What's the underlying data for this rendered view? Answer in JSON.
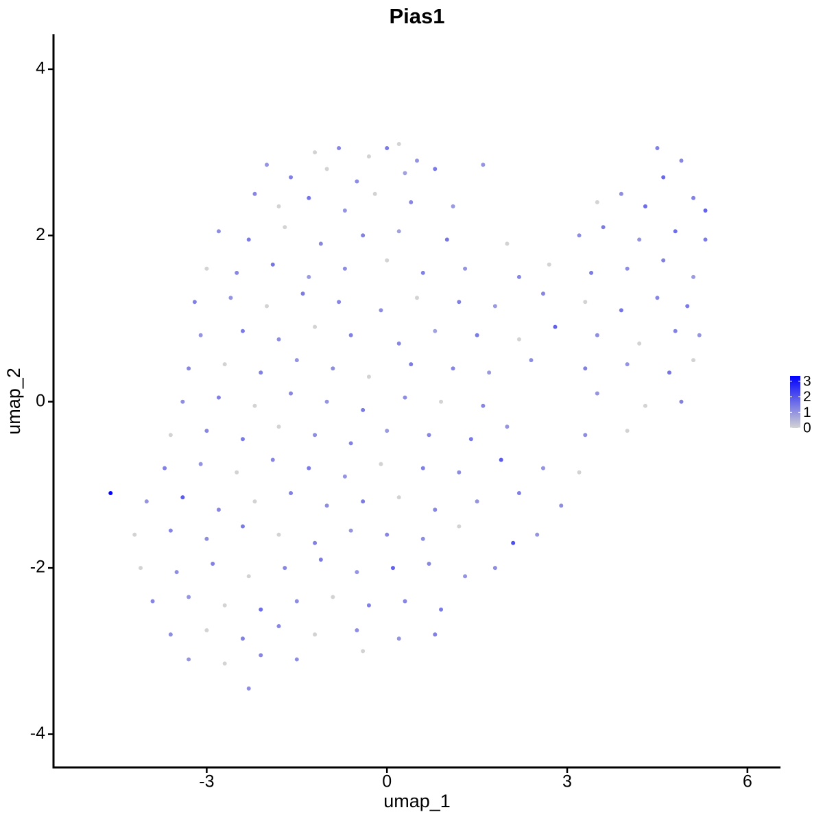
{
  "chart_data": {
    "type": "scatter",
    "title": "Pias1",
    "x_label": "umap_1",
    "y_label": "umap_2",
    "xlim": [
      -5.55,
      6.55
    ],
    "ylim": [
      -4.4,
      4.42
    ],
    "xticks": [
      -3,
      0,
      3,
      6
    ],
    "yticks": [
      -4,
      -2,
      0,
      2,
      4
    ],
    "grid": false,
    "point_size": 3,
    "series": [
      {
        "x": [
          -1.2,
          -0.8,
          -0.3,
          0,
          0.2,
          0.5,
          4.5,
          -2.0,
          -1.6,
          -1.0,
          -0.5,
          0.3,
          0.8,
          1.6,
          4.6,
          4.9,
          -2.2,
          -1.8,
          -1.3,
          -0.7,
          -0.2,
          0.4,
          1.1,
          3.5,
          3.9,
          4.3,
          5.1,
          5.3,
          -2.8,
          -2.3,
          -1.7,
          -1.1,
          -0.4,
          0.2,
          1.0,
          2.0,
          3.2,
          3.6,
          4.2,
          4.8,
          5.3,
          -3.0,
          -2.5,
          -1.9,
          -1.3,
          -0.7,
          0,
          0.6,
          1.3,
          2.2,
          2.7,
          3.4,
          4.0,
          4.6,
          5.1,
          -3.2,
          -2.6,
          -2.0,
          -1.4,
          -0.8,
          -0.1,
          0.5,
          1.2,
          1.8,
          2.6,
          3.3,
          3.9,
          4.5,
          5.0,
          -3.1,
          -2.4,
          -1.8,
          -1.2,
          -0.6,
          0.2,
          0.8,
          1.5,
          2.2,
          2.8,
          3.5,
          4.2,
          4.8,
          5.2,
          -3.3,
          -2.7,
          -2.1,
          -1.5,
          -0.9,
          -0.3,
          0.4,
          1.1,
          1.7,
          2.4,
          3.3,
          4.0,
          4.7,
          5.1,
          -3.4,
          -2.8,
          -2.2,
          -1.6,
          -1.0,
          -0.4,
          0.3,
          0.9,
          1.6,
          3.5,
          4.3,
          4.9,
          -3.6,
          -3.0,
          -2.4,
          -1.8,
          -1.2,
          -0.6,
          0,
          0.7,
          1.4,
          2.0,
          3.3,
          4.0,
          -3.7,
          -3.1,
          -2.5,
          -1.9,
          -1.3,
          -0.7,
          -0.1,
          0.6,
          1.2,
          1.9,
          2.6,
          3.2,
          -4.6,
          -4.0,
          -3.4,
          -2.8,
          -2.2,
          -1.6,
          -1.0,
          -0.4,
          0.2,
          0.8,
          1.5,
          2.2,
          2.9,
          -4.2,
          -3.6,
          -3.0,
          -2.4,
          -1.8,
          -1.2,
          -0.6,
          0,
          0.6,
          1.2,
          2.1,
          2.5,
          -4.1,
          -3.5,
          -2.9,
          -2.3,
          -1.7,
          -1.1,
          -0.5,
          0.1,
          0.7,
          1.3,
          1.8,
          -3.9,
          -3.3,
          -2.7,
          -2.1,
          -1.5,
          -0.9,
          -0.3,
          0.3,
          0.9,
          -3.6,
          -3.0,
          -2.4,
          -1.8,
          -1.2,
          -0.5,
          0.2,
          0.8,
          -3.3,
          -2.7,
          -2.1,
          -1.5,
          -0.4,
          -2.3
        ],
        "y": [
          3.0,
          3.05,
          2.95,
          3.05,
          3.1,
          2.9,
          3.05,
          2.85,
          2.7,
          2.8,
          2.65,
          2.75,
          2.8,
          2.85,
          2.7,
          2.9,
          2.5,
          2.35,
          2.45,
          2.3,
          2.5,
          2.4,
          2.35,
          2.4,
          2.5,
          2.35,
          2.45,
          2.3,
          2.05,
          1.95,
          2.1,
          1.9,
          2.0,
          2.05,
          1.95,
          1.9,
          2.0,
          2.1,
          1.95,
          2.05,
          1.95,
          1.6,
          1.55,
          1.65,
          1.5,
          1.6,
          1.7,
          1.55,
          1.6,
          1.5,
          1.65,
          1.55,
          1.6,
          1.7,
          1.5,
          1.2,
          1.25,
          1.15,
          1.3,
          1.2,
          1.1,
          1.25,
          1.2,
          1.15,
          1.3,
          1.2,
          1.1,
          1.25,
          1.15,
          0.8,
          0.85,
          0.75,
          0.9,
          0.8,
          0.7,
          0.85,
          0.8,
          0.75,
          0.9,
          0.8,
          0.7,
          0.85,
          0.8,
          0.4,
          0.45,
          0.35,
          0.5,
          0.4,
          0.3,
          0.45,
          0.4,
          0.35,
          0.5,
          0.4,
          0.45,
          0.35,
          0.5,
          0.0,
          0.05,
          -0.05,
          0.1,
          0.0,
          -0.1,
          0.05,
          0.0,
          -0.05,
          0.1,
          -0.05,
          0.0,
          -0.4,
          -0.35,
          -0.45,
          -0.3,
          -0.4,
          -0.5,
          -0.35,
          -0.4,
          -0.45,
          -0.3,
          -0.4,
          -0.35,
          -0.8,
          -0.75,
          -0.85,
          -0.7,
          -0.8,
          -0.9,
          -0.75,
          -0.8,
          -0.85,
          -0.7,
          -0.8,
          -0.85,
          -1.1,
          -1.2,
          -1.15,
          -1.3,
          -1.2,
          -1.1,
          -1.25,
          -1.2,
          -1.15,
          -1.3,
          -1.2,
          -1.1,
          -1.25,
          -1.6,
          -1.55,
          -1.65,
          -1.5,
          -1.6,
          -1.7,
          -1.55,
          -1.6,
          -1.65,
          -1.5,
          -1.7,
          -1.6,
          -2.0,
          -2.05,
          -1.95,
          -2.1,
          -2.0,
          -1.9,
          -2.05,
          -2.0,
          -1.95,
          -2.1,
          -2.0,
          -2.4,
          -2.35,
          -2.45,
          -2.5,
          -2.4,
          -2.35,
          -2.45,
          -2.4,
          -2.5,
          -2.8,
          -2.75,
          -2.85,
          -2.7,
          -2.8,
          -2.75,
          -2.85,
          -2.8,
          -3.1,
          -3.15,
          -3.05,
          -3.1,
          -3.0,
          -3.45
        ],
        "values": [
          0,
          1.2,
          0,
          1.4,
          0,
          1,
          1.3,
          1,
          1.3,
          0,
          1.1,
          0.8,
          1.4,
          1,
          1.7,
          1.2,
          1.2,
          0,
          1.5,
          1,
          0,
          1.2,
          0.9,
          0,
          1.1,
          1.6,
          1.3,
          1.8,
          1.1,
          1.4,
          0,
          1.2,
          1.3,
          0.8,
          1.5,
          0,
          1.1,
          1.4,
          1,
          1.6,
          1.4,
          0,
          1.2,
          1.5,
          0.9,
          1.1,
          0,
          1.3,
          1,
          1.2,
          0,
          1.4,
          1.1,
          1.3,
          0.9,
          1.3,
          1,
          0,
          1.4,
          1.2,
          1.1,
          0,
          1.3,
          0.9,
          1.2,
          0,
          1.5,
          1.2,
          1.4,
          1,
          1.4,
          1.1,
          0,
          1.3,
          1.2,
          0.8,
          1.4,
          0,
          1.8,
          1.1,
          0,
          1.3,
          1,
          1.2,
          0,
          1.3,
          1,
          1.1,
          0,
          1.4,
          1.2,
          0.9,
          1.1,
          1.3,
          1,
          1.5,
          0,
          1.1,
          1.3,
          0,
          1.2,
          1,
          1.4,
          1.1,
          0,
          1.2,
          1,
          0,
          1.3,
          0,
          1.2,
          1.4,
          0,
          1.1,
          1.3,
          0.9,
          1.2,
          1.4,
          1,
          1.1,
          0,
          1.3,
          1,
          0,
          1.2,
          1.4,
          1,
          0,
          1.3,
          1.1,
          1.9,
          1,
          0,
          3.3,
          1,
          1.9,
          1.2,
          0,
          1.3,
          1.1,
          1.4,
          0,
          1.2,
          1,
          1.3,
          1.1,
          0,
          1.2,
          1.1,
          1.4,
          0,
          1.3,
          1,
          1.2,
          1.1,
          0,
          2.1,
          1,
          0,
          1.1,
          1.3,
          0,
          1.2,
          1.4,
          1,
          1.8,
          1.2,
          1,
          1.1,
          1.2,
          1,
          0,
          1.6,
          1.1,
          0,
          1.3,
          1.2,
          1.4,
          1.1,
          0,
          1.3,
          1.2,
          0,
          1.1,
          1,
          1.3,
          1,
          0,
          1.2,
          1.1,
          0,
          1.1
        ]
      }
    ],
    "colorbar": {
      "lim": [
        0,
        3.35
      ],
      "ticks": [
        0,
        1,
        2,
        3
      ],
      "colors": [
        "#d3d3d3",
        "#0000ff"
      ]
    }
  }
}
